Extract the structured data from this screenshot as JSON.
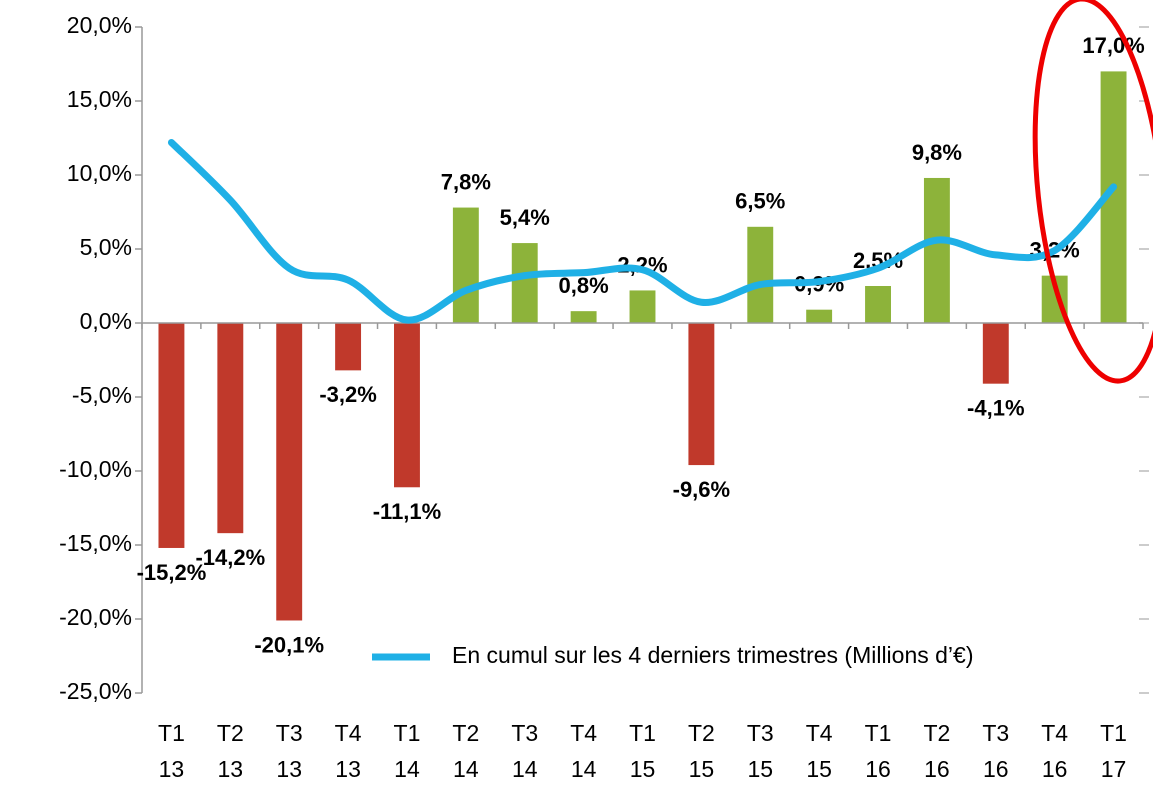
{
  "chart_data": {
    "type": "bar",
    "categories": [
      "T1 13",
      "T2 13",
      "T3 13",
      "T4 13",
      "T1 14",
      "T2 14",
      "T3 14",
      "T4 14",
      "T1 15",
      "T2 15",
      "T3 15",
      "T4 15",
      "T1 16",
      "T2 16",
      "T3 16",
      "T4 16",
      "T1 17"
    ],
    "values": [
      -15.2,
      -14.2,
      -20.1,
      -3.2,
      -11.1,
      7.8,
      5.4,
      0.8,
      2.2,
      -9.6,
      6.5,
      0.9,
      2.5,
      9.8,
      -4.1,
      3.2,
      17.0
    ],
    "value_labels": [
      "-15,2%",
      "-14,2%",
      "-20,1%",
      "-3,2%",
      "-11,1%",
      "7,8%",
      "5,4%",
      "0,8%",
      "2,2%",
      "-9,6%",
      "6,5%",
      "0,9%",
      "2,5%",
      "9,8%",
      "-4,1%",
      "3,2%",
      "17,0%"
    ],
    "positive_color": "#8db33a",
    "negative_color": "#c0392b",
    "series": [
      {
        "name": "En cumul sur les 4 derniers trimestres (Millions d’€)",
        "color": "#1fb0e6",
        "values": [
          12.2,
          8.3,
          3.7,
          2.9,
          0.2,
          2.2,
          3.2,
          3.4,
          3.6,
          1.4,
          2.6,
          2.8,
          3.7,
          5.6,
          4.6,
          4.9,
          9.2
        ]
      }
    ],
    "ylim": [
      -25,
      20
    ],
    "yticks": [
      {
        "value": -25,
        "label": "-25,0%"
      },
      {
        "value": -20,
        "label": "-20,0%"
      },
      {
        "value": -15,
        "label": "-15,0%"
      },
      {
        "value": -10,
        "label": "-10,0%"
      },
      {
        "value": -5,
        "label": "-5,0%"
      },
      {
        "value": 0,
        "label": "0,0%"
      },
      {
        "value": 5,
        "label": "5,0%"
      },
      {
        "value": 10,
        "label": "10,0%"
      },
      {
        "value": 15,
        "label": "15,0%"
      },
      {
        "value": 20,
        "label": "20,0%"
      }
    ],
    "grid": false
  }
}
